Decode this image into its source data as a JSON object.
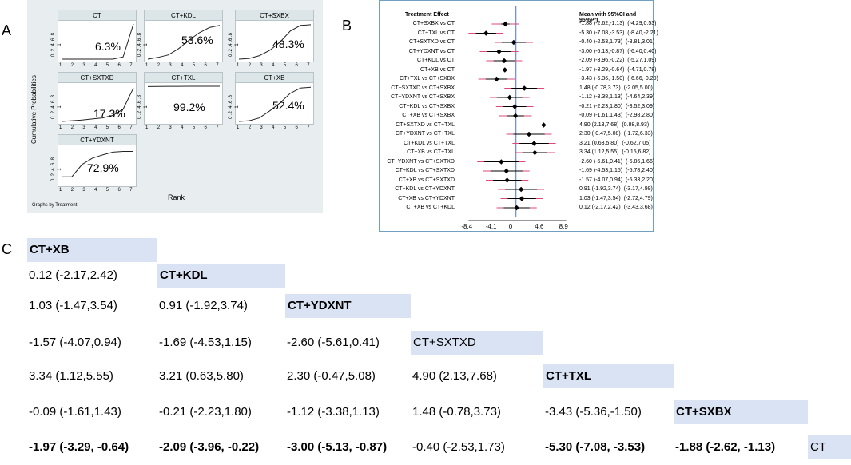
{
  "panel_labels": {
    "a": "A",
    "b": "B",
    "c": "C"
  },
  "panel_a": {
    "y_axis_label": "Cumulative Probabilities",
    "x_axis_label": "Rank",
    "caption": "Graphs by Treatment",
    "y_ticks": "0 .2 .4 .6 .8 1",
    "x_ticks": [
      "1",
      "2",
      "3",
      "4",
      "5",
      "6",
      "7"
    ],
    "subplots": [
      {
        "title": "CT",
        "pct": "6.3%",
        "curve": [
          0,
          0,
          0,
          0,
          0,
          0,
          0.063,
          1
        ]
      },
      {
        "title": "CT+KDL",
        "pct": "53.6%",
        "curve": [
          0,
          0.05,
          0.12,
          0.3,
          0.536,
          0.75,
          0.9,
          0.96
        ]
      },
      {
        "title": "CT+SXBX",
        "pct": "48.3%",
        "curve": [
          0,
          0.02,
          0.1,
          0.25,
          0.483,
          0.8,
          0.96,
          0.98
        ]
      },
      {
        "title": "CT+SXTXD",
        "pct": "17.3%",
        "curve": [
          0,
          0.02,
          0.04,
          0.07,
          0.1,
          0.173,
          0.35,
          0.95
        ]
      },
      {
        "title": "CT+TXL",
        "pct": "99.2%",
        "curve": [
          0.992,
          0.995,
          0.997,
          0.998,
          0.999,
          1,
          1,
          1
        ]
      },
      {
        "title": "CT+XB",
        "pct": "52.4%",
        "curve": [
          0,
          0.02,
          0.1,
          0.3,
          0.524,
          0.8,
          0.95,
          0.97
        ]
      },
      {
        "title": "CT+YDXNT",
        "pct": "72.9%",
        "curve": [
          0.2,
          0.2,
          0.55,
          0.729,
          0.82,
          0.9,
          0.92,
          0.92
        ]
      }
    ]
  },
  "panel_b": {
    "header_left": "Treatment Effect",
    "header_right": "Mean with 95%CI and 95%PrI",
    "x_ticks": [
      "-8.4",
      "-4.1",
      "0",
      "4.6",
      "8.9"
    ],
    "rows": [
      {
        "label": "CT+SXBX vs CT",
        "text": "-1.88 (-2.62,-1.13)  (-4.29,0.53)",
        "mean": -1.88,
        "ci": [
          -2.62,
          -1.13
        ],
        "pri": [
          -4.29,
          0.53
        ]
      },
      {
        "label": "CT+TXL vs CT",
        "text": "-5.30 (-7.08,-3.53)  (-8.40,-2.21)",
        "mean": -5.3,
        "ci": [
          -7.08,
          -3.53
        ],
        "pri": [
          -8.4,
          -2.21
        ]
      },
      {
        "label": "CT+SXTXD vs CT",
        "text": "-0.40 (-2.53,1.73)  (-3.81,3.01)",
        "mean": -0.4,
        "ci": [
          -2.53,
          1.73
        ],
        "pri": [
          -3.81,
          3.01
        ]
      },
      {
        "label": "CT+YDXNT vs CT",
        "text": "-3.00 (-5.13,-0.87)  (-6.40,0.40)",
        "mean": -3.0,
        "ci": [
          -5.13,
          -0.87
        ],
        "pri": [
          -6.4,
          0.4
        ]
      },
      {
        "label": "CT+KDL vs CT",
        "text": "-2.09 (-3.96,-0.22)  (-5.27,1.09)",
        "mean": -2.09,
        "ci": [
          -3.96,
          -0.22
        ],
        "pri": [
          -5.27,
          1.09
        ]
      },
      {
        "label": "CT+XB vs CT",
        "text": "-1.97 (-3.29,-0.64)  (-4.71,0.78)",
        "mean": -1.97,
        "ci": [
          -3.29,
          -0.64
        ],
        "pri": [
          -4.71,
          0.78
        ]
      },
      {
        "label": "CT+TXL vs CT+SXBX",
        "text": "-3.43 (-5.36,-1.50)  (-6.66,-0.20)",
        "mean": -3.43,
        "ci": [
          -5.36,
          -1.5
        ],
        "pri": [
          -6.66,
          -0.2
        ]
      },
      {
        "label": "CT+SXTXD vs CT+SXBX",
        "text": "1.48 (-0.78,3.73)  (-2.05,5.00)",
        "mean": 1.48,
        "ci": [
          -0.78,
          3.73
        ],
        "pri": [
          -2.05,
          5.0
        ]
      },
      {
        "label": "CT+YDXNT vs CT+SXBX",
        "text": "-1.12 (-3.38,1.13)  (-4.64,2.39)",
        "mean": -1.12,
        "ci": [
          -3.38,
          1.13
        ],
        "pri": [
          -4.64,
          2.39
        ]
      },
      {
        "label": "CT+KDL vs CT+SXBX",
        "text": "-0.21 (-2.23,1.80)  (-3.52,3.09)",
        "mean": -0.21,
        "ci": [
          -2.23,
          1.8
        ],
        "pri": [
          -3.52,
          3.09
        ]
      },
      {
        "label": "CT+XB vs CT+SXBX",
        "text": "-0.09 (-1.61,1.43)  (-2.98,2.80)",
        "mean": -0.09,
        "ci": [
          -1.61,
          1.43
        ],
        "pri": [
          -2.98,
          2.8
        ]
      },
      {
        "label": "CT+SXTXD vs CT+TXL",
        "text": "4.90 (2.13,7.68)  (0.88,8.93)",
        "mean": 4.9,
        "ci": [
          2.13,
          7.68
        ],
        "pri": [
          0.88,
          8.93
        ]
      },
      {
        "label": "CT+YDXNT vs CT+TXL",
        "text": "2.30 (-0.47,5.08)  (-1.72,6.33)",
        "mean": 2.3,
        "ci": [
          -0.47,
          5.08
        ],
        "pri": [
          -1.72,
          6.33
        ]
      },
      {
        "label": "CT+KDL vs CT+TXL",
        "text": "3.21 (0.63,5.80)  (-0.62,7.05)",
        "mean": 3.21,
        "ci": [
          0.63,
          5.8
        ],
        "pri": [
          -0.62,
          7.05
        ]
      },
      {
        "label": "CT+XB vs CT+TXL",
        "text": "3.34 (1.12,5.55)  (-0.15,6.82)",
        "mean": 3.34,
        "ci": [
          1.12,
          5.55
        ],
        "pri": [
          -0.15,
          6.82
        ]
      },
      {
        "label": "CT+YDXNT vs CT+SXTXD",
        "text": "-2.60 (-5.61,0.41)  (-6.86,1.66)",
        "mean": -2.6,
        "ci": [
          -5.61,
          0.41
        ],
        "pri": [
          -6.86,
          1.66
        ]
      },
      {
        "label": "CT+KDL vs CT+SXTXD",
        "text": "-1.69 (-4.53,1.15)  (-5.78,2.40)",
        "mean": -1.69,
        "ci": [
          -4.53,
          1.15
        ],
        "pri": [
          -5.78,
          2.4
        ]
      },
      {
        "label": "CT+XB vs CT+SXTXD",
        "text": "-1.57 (-4.07,0.94)  (-5.33,2.20)",
        "mean": -1.57,
        "ci": [
          -4.07,
          0.94
        ],
        "pri": [
          -5.33,
          2.2
        ]
      },
      {
        "label": "CT+KDL vs CT+YDXNT",
        "text": "0.91 (-1.92,3.74)  (-3.17,4.99)",
        "mean": 0.91,
        "ci": [
          -1.92,
          3.74
        ],
        "pri": [
          -3.17,
          4.99
        ]
      },
      {
        "label": "CT+XB vs CT+YDXNT",
        "text": "1.03 (-1.47,3.54)  (-2.72,4.79)",
        "mean": 1.03,
        "ci": [
          -1.47,
          3.54
        ],
        "pri": [
          -2.72,
          4.79
        ]
      },
      {
        "label": "CT+XB vs CT+KDL",
        "text": "0.12 (-2.17,2.42)  (-3.43,3.68)",
        "mean": 0.12,
        "ci": [
          -2.17,
          2.42
        ],
        "pri": [
          -3.43,
          3.68
        ]
      }
    ]
  },
  "panel_c": {
    "diagonal": [
      {
        "text": "CT+XB",
        "bold": true
      },
      {
        "text": "CT+KDL",
        "bold": true
      },
      {
        "text": "CT+YDXNT",
        "bold": true
      },
      {
        "text": "CT+SXTXD",
        "bold": false
      },
      {
        "text": "CT+TXL",
        "bold": true
      },
      {
        "text": "CT+SXBX",
        "bold": true
      },
      {
        "text": "CT",
        "bold": false
      }
    ],
    "rows": [
      [],
      [
        {
          "text": "0.12 (-2.17,2.42)",
          "bold": false
        }
      ],
      [
        {
          "text": "1.03 (-1.47,3.54)",
          "bold": false
        },
        {
          "text": "0.91 (-1.92,3.74)",
          "bold": false
        }
      ],
      [
        {
          "text": "-1.57 (-4.07,0.94)",
          "bold": false
        },
        {
          "text": "-1.69 (-4.53,1.15)",
          "bold": false
        },
        {
          "text": "-2.60 (-5.61,0.41)",
          "bold": false
        }
      ],
      [
        {
          "text": "3.34 (1.12,5.55)",
          "bold": false
        },
        {
          "text": "3.21 (0.63,5.80)",
          "bold": false
        },
        {
          "text": "2.30 (-0.47,5.08)",
          "bold": false
        },
        {
          "text": "4.90 (2.13,7.68)",
          "bold": false
        }
      ],
      [
        {
          "text": "-0.09 (-1.61,1.43)",
          "bold": false
        },
        {
          "text": "-0.21 (-2.23,1.80)",
          "bold": false
        },
        {
          "text": "-1.12 (-3.38,1.13)",
          "bold": false
        },
        {
          "text": "1.48 (-0.78,3.73)",
          "bold": false
        },
        {
          "text": "-3.43 (-5.36,-1.50)",
          "bold": false
        }
      ],
      [
        {
          "text": "-1.97 (-3.29, -0.64)",
          "bold": true
        },
        {
          "text": "-2.09 (-3.96, -0.22)",
          "bold": true
        },
        {
          "text": "-3.00 (-5.13, -0.87)",
          "bold": true
        },
        {
          "text": "-0.40 (-2.53,1.73)",
          "bold": false
        },
        {
          "text": "-5.30 (-7.08, -3.53)",
          "bold": true
        },
        {
          "text": "-1.88 (-2.62, -1.13)",
          "bold": true
        }
      ]
    ]
  },
  "colors": {
    "ci": "#000000",
    "pri": "#e0487a",
    "null_line": "#4a6fd8",
    "diag_bg": "#dae3f3"
  }
}
